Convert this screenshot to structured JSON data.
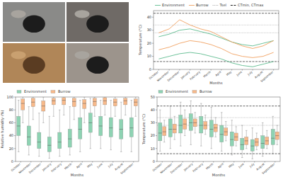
{
  "chart_data": [
    {
      "type": "line",
      "x_label": "Months",
      "y_label": "Temperature (°C)",
      "categories": [
        "October",
        "November",
        "December",
        "January",
        "February",
        "March",
        "April",
        "May",
        "June",
        "July",
        "August",
        "September"
      ],
      "ylim": [
        0,
        45
      ],
      "yticks": [
        0,
        10,
        20,
        30,
        40
      ],
      "grid": false,
      "legend": "top",
      "series": [
        {
          "name": "Environment",
          "color": "#5dbb8f",
          "values": [
            25,
            27,
            30,
            31,
            29,
            27,
            24,
            21,
            19,
            18,
            20,
            22
          ],
          "low": [
            8,
            10,
            12,
            13,
            12,
            10,
            8,
            5,
            3,
            2,
            4,
            6
          ]
        },
        {
          "name": "Burrow",
          "color": "#f0a060",
          "values": [
            28,
            31,
            38,
            34,
            31,
            29,
            25,
            21,
            18,
            16,
            18,
            22
          ],
          "low": [
            15,
            17,
            20,
            22,
            21,
            19,
            16,
            12,
            10,
            9,
            10,
            13
          ]
        }
      ],
      "reference_lines": [
        {
          "name": "Tsel",
          "values": [
            28,
            34
          ],
          "color": "#999999",
          "line_style": "dotted"
        },
        {
          "name": "CTmin, CTmax",
          "values": [
            6,
            43
          ],
          "color": "#000000",
          "line_style": "dashed"
        }
      ]
    },
    {
      "type": "box",
      "x_label": "Months",
      "y_label": "Relative humidity (%)",
      "categories": [
        "October",
        "November",
        "December",
        "January",
        "February",
        "March",
        "April",
        "May",
        "June",
        "July",
        "August",
        "September"
      ],
      "ylim": [
        0,
        100
      ],
      "yticks": [
        0,
        20,
        40,
        60,
        80,
        100
      ],
      "grid": false,
      "legend": "top",
      "series": [
        {
          "name": "Environment",
          "color": "#8ed3b3",
          "min": [
            15,
            10,
            8,
            5,
            8,
            10,
            15,
            20,
            20,
            18,
            15,
            15
          ],
          "q1": [
            40,
            25,
            20,
            15,
            20,
            22,
            35,
            45,
            40,
            38,
            35,
            38
          ],
          "median": [
            55,
            38,
            30,
            25,
            30,
            35,
            50,
            60,
            55,
            52,
            50,
            52
          ],
          "q3": [
            70,
            55,
            45,
            38,
            45,
            50,
            68,
            75,
            70,
            68,
            65,
            68
          ],
          "max": [
            95,
            85,
            75,
            70,
            80,
            85,
            95,
            98,
            95,
            95,
            92,
            95
          ]
        },
        {
          "name": "Burrow",
          "color": "#f7b98a",
          "min": [
            60,
            65,
            60,
            70,
            72,
            65,
            60,
            70,
            72,
            70,
            72,
            70
          ],
          "q1": [
            80,
            85,
            78,
            88,
            88,
            85,
            82,
            86,
            88,
            86,
            88,
            86
          ],
          "median": [
            90,
            92,
            86,
            94,
            95,
            93,
            90,
            93,
            94,
            92,
            94,
            92
          ],
          "q3": [
            97,
            98,
            94,
            98,
            99,
            98,
            96,
            98,
            99,
            97,
            98,
            97
          ],
          "max": [
            100,
            100,
            100,
            100,
            100,
            100,
            100,
            100,
            100,
            100,
            100,
            100
          ]
        }
      ]
    },
    {
      "type": "box",
      "x_label": "Months",
      "y_label": "Temperature (°C)",
      "categories": [
        "October",
        "November",
        "December",
        "January",
        "February",
        "March",
        "April",
        "May",
        "June",
        "July",
        "August",
        "September"
      ],
      "ylim": [
        0,
        50
      ],
      "yticks": [
        0,
        10,
        20,
        30,
        40,
        50
      ],
      "grid": false,
      "legend": "top",
      "series": [
        {
          "name": "Environment",
          "color": "#8ed3b3",
          "min": [
            8,
            10,
            12,
            13,
            12,
            10,
            8,
            5,
            3,
            2,
            4,
            6
          ],
          "q1": [
            16,
            19,
            22,
            24,
            22,
            19,
            15,
            12,
            9,
            8,
            10,
            13
          ],
          "median": [
            22,
            25,
            28,
            30,
            28,
            25,
            21,
            17,
            13,
            12,
            14,
            18
          ],
          "q3": [
            30,
            33,
            36,
            37,
            35,
            32,
            28,
            23,
            18,
            17,
            20,
            25
          ],
          "max": [
            40,
            43,
            46,
            47,
            45,
            42,
            38,
            32,
            28,
            26,
            30,
            35
          ]
        },
        {
          "name": "Burrow",
          "color": "#f7b98a",
          "min": [
            15,
            17,
            20,
            22,
            21,
            19,
            16,
            12,
            10,
            9,
            10,
            13
          ],
          "q1": [
            20,
            22,
            25,
            27,
            25,
            23,
            20,
            16,
            13,
            12,
            13,
            17
          ],
          "median": [
            23,
            25,
            29,
            30,
            28,
            26,
            23,
            19,
            16,
            15,
            16,
            20
          ],
          "q3": [
            27,
            29,
            33,
            33,
            31,
            29,
            26,
            22,
            19,
            18,
            19,
            23
          ],
          "max": [
            32,
            35,
            40,
            38,
            36,
            34,
            31,
            27,
            24,
            22,
            24,
            28
          ]
        }
      ],
      "reference_lines": [
        {
          "values": [
            28,
            34
          ],
          "color": "#999999",
          "line_style": "dotted"
        },
        {
          "values": [
            6,
            43
          ],
          "color": "#000000",
          "line_style": "dashed"
        }
      ]
    }
  ]
}
